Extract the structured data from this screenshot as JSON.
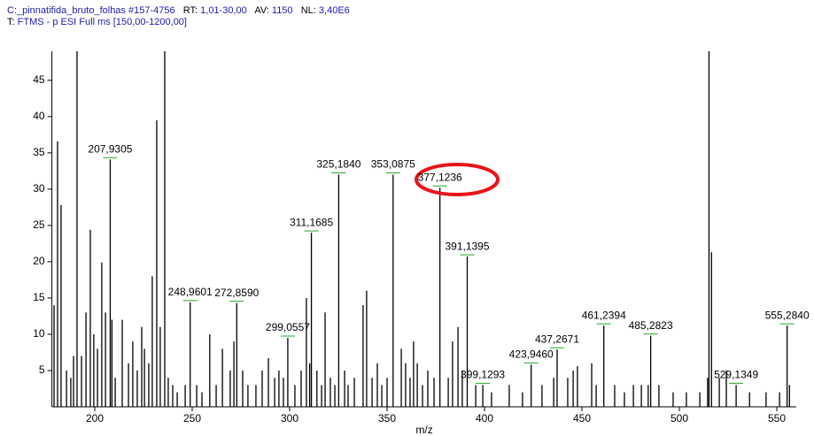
{
  "header": {
    "file": "C:_pinnatifida_bruto_folhas #157-4756",
    "rt_label": "RT:",
    "rt": "1,01-30,00",
    "av_label": "AV:",
    "av": "1150",
    "nl_label": "NL:",
    "nl": "3,40E6",
    "filter_label": "T:",
    "filter": "FTMS - p ESI Full ms [150,00-1200,00]"
  },
  "chart_data": {
    "type": "spectrum",
    "x_label": "m/z",
    "color": "#000000",
    "xlim": [
      178,
      560
    ],
    "ylim": [
      0,
      49
    ],
    "xticks": [
      200,
      250,
      300,
      350,
      400,
      450,
      500,
      550
    ],
    "yticks": [
      5,
      10,
      15,
      20,
      25,
      30,
      35,
      40,
      45
    ],
    "x": [
      179.1,
      180.9,
      182.7,
      185.5,
      187.7,
      189.1,
      190.9,
      193.2,
      195.5,
      197.7,
      199.5,
      201.4,
      203.6,
      205.5,
      207.9305,
      208.8,
      210.5,
      214.1,
      217.3,
      219.5,
      221.8,
      224.1,
      225.5,
      227.7,
      229.5,
      231.8,
      233.6,
      235.9,
      237.7,
      240,
      242.3,
      246.4,
      248.9601,
      252.3,
      255,
      259,
      262.3,
      265.5,
      269.5,
      271.4,
      272.859,
      275.9,
      278.6,
      282.7,
      285.9,
      289.1,
      292.3,
      294.5,
      296.8,
      299.0557,
      302.7,
      305.9,
      308.6,
      310.3,
      311.1685,
      314,
      316.4,
      318.2,
      320.9,
      323.2,
      325.184,
      328.2,
      330,
      333.2,
      337.7,
      339.5,
      342.3,
      345,
      347.3,
      350,
      353.0875,
      357.3,
      359.5,
      361.8,
      363.6,
      365.5,
      368.2,
      370.9,
      374.1,
      377.1236,
      381.4,
      383.6,
      386.4,
      388.6,
      391.1395,
      395.5,
      399.1293,
      403.6,
      412.7,
      419.5,
      423.946,
      429.5,
      435.5,
      437.2671,
      442.7,
      445.5,
      447.7,
      455,
      457.3,
      461.2394,
      466.8,
      471.8,
      476.4,
      480.5,
      484,
      485.2823,
      489.5,
      496.8,
      503.6,
      510.5,
      514.5,
      515.2,
      516.5,
      520.5,
      524.1,
      529.1349,
      536,
      544.5,
      551.4,
      555.284,
      556.5
    ],
    "values": [
      14,
      36.6,
      27.8,
      5,
      4,
      7,
      60,
      7,
      13,
      24.4,
      10,
      8,
      19.9,
      13,
      34.1,
      12,
      4,
      12,
      6,
      9,
      5,
      11,
      8,
      6,
      18,
      39.5,
      11,
      60,
      4,
      3,
      2,
      3,
      14.4,
      3,
      2,
      10,
      3,
      8,
      5,
      9,
      14.3,
      5,
      3,
      3,
      5,
      6.7,
      4,
      5,
      4,
      9.5,
      3,
      5,
      15,
      6,
      24,
      5,
      3,
      13,
      4,
      3,
      32,
      5,
      3,
      4,
      14,
      16,
      4,
      6,
      3,
      4,
      32,
      8,
      6,
      4,
      9,
      6,
      3,
      5,
      4,
      30.2,
      4,
      9,
      11,
      5,
      20.7,
      3,
      3,
      2,
      3,
      2,
      5.8,
      3,
      4,
      7.9,
      4,
      5,
      5.6,
      6,
      3,
      11.2,
      3,
      2,
      3,
      3,
      3,
      9.8,
      3,
      2,
      2,
      2,
      4,
      60,
      21.3,
      4,
      5,
      3,
      2,
      2,
      2,
      11.2,
      3
    ],
    "annotations": [
      {
        "x": 207.9305,
        "label": "207,9305"
      },
      {
        "x": 248.9601,
        "label": "248,9601"
      },
      {
        "x": 272.859,
        "label": "272,8590"
      },
      {
        "x": 299.0557,
        "label": "299,0557"
      },
      {
        "x": 311.1685,
        "label": "311,1685"
      },
      {
        "x": 325.184,
        "label": "325,1840"
      },
      {
        "x": 353.0875,
        "label": "353,0875"
      },
      {
        "x": 377.1236,
        "label": "377,1236"
      },
      {
        "x": 391.1395,
        "label": "391,1395"
      },
      {
        "x": 399.1293,
        "label": "399,1293"
      },
      {
        "x": 423.946,
        "label": "423,9460"
      },
      {
        "x": 437.2671,
        "label": "437,2671"
      },
      {
        "x": 461.2394,
        "label": "461,2394"
      },
      {
        "x": 485.2823,
        "label": "485,2823"
      },
      {
        "x": 529.1349,
        "label": "529,1349"
      },
      {
        "x": 555.284,
        "label": "555,2840"
      }
    ]
  }
}
